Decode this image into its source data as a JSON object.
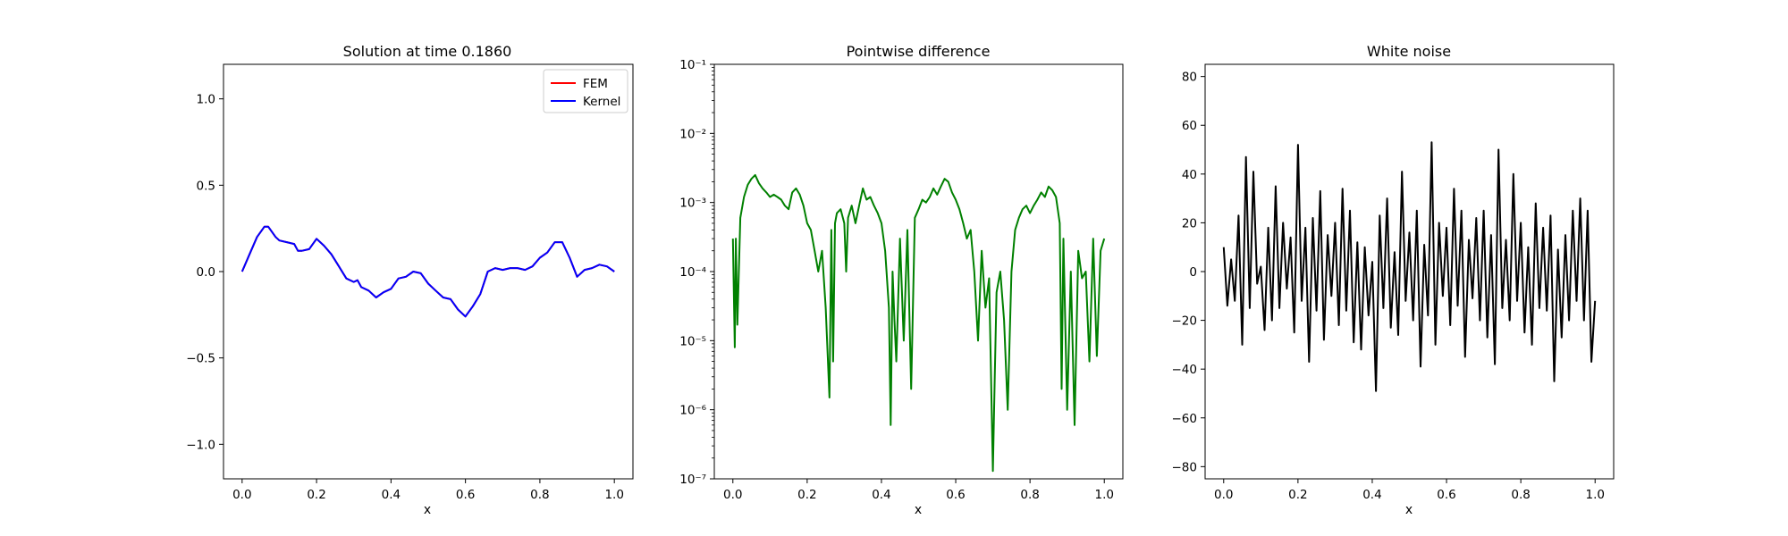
{
  "chart_data": [
    {
      "type": "line",
      "title": "Solution at time 0.1860",
      "xlabel": "x",
      "ylabel": "",
      "xlim": [
        -0.05,
        1.05
      ],
      "ylim": [
        -1.2,
        1.2
      ],
      "xticks": [
        "0.0",
        "0.2",
        "0.4",
        "0.6",
        "0.8",
        "1.0"
      ],
      "yticks": [
        "−1.0",
        "−0.5",
        "0.0",
        "0.5",
        "1.0"
      ],
      "yscale": "linear",
      "grid": false,
      "legend": "top-right",
      "series": [
        {
          "name": "FEM",
          "color": "#ff0000",
          "x": [
            0.0,
            0.02,
            0.04,
            0.06,
            0.07,
            0.09,
            0.1,
            0.12,
            0.14,
            0.15,
            0.16,
            0.18,
            0.2,
            0.22,
            0.24,
            0.26,
            0.28,
            0.3,
            0.31,
            0.32,
            0.34,
            0.36,
            0.38,
            0.4,
            0.42,
            0.44,
            0.46,
            0.48,
            0.5,
            0.52,
            0.54,
            0.56,
            0.58,
            0.6,
            0.62,
            0.64,
            0.66,
            0.68,
            0.7,
            0.72,
            0.74,
            0.76,
            0.78,
            0.8,
            0.82,
            0.84,
            0.86,
            0.88,
            0.9,
            0.92,
            0.94,
            0.96,
            0.98,
            1.0
          ],
          "y": [
            0.0,
            0.1,
            0.2,
            0.26,
            0.26,
            0.2,
            0.18,
            0.17,
            0.16,
            0.12,
            0.12,
            0.13,
            0.19,
            0.15,
            0.1,
            0.03,
            -0.04,
            -0.06,
            -0.05,
            -0.09,
            -0.11,
            -0.15,
            -0.12,
            -0.1,
            -0.04,
            -0.03,
            0.0,
            -0.01,
            -0.07,
            -0.11,
            -0.15,
            -0.16,
            -0.22,
            -0.26,
            -0.2,
            -0.13,
            0.0,
            0.02,
            0.01,
            0.02,
            0.02,
            0.01,
            0.03,
            0.08,
            0.11,
            0.17,
            0.17,
            0.08,
            -0.03,
            0.01,
            0.02,
            0.04,
            0.03,
            0.0
          ]
        },
        {
          "name": "Kernel",
          "color": "#0000ff",
          "x": [
            0.0,
            0.02,
            0.04,
            0.06,
            0.07,
            0.09,
            0.1,
            0.12,
            0.14,
            0.15,
            0.16,
            0.18,
            0.2,
            0.22,
            0.24,
            0.26,
            0.28,
            0.3,
            0.31,
            0.32,
            0.34,
            0.36,
            0.38,
            0.4,
            0.42,
            0.44,
            0.46,
            0.48,
            0.5,
            0.52,
            0.54,
            0.56,
            0.58,
            0.6,
            0.62,
            0.64,
            0.66,
            0.68,
            0.7,
            0.72,
            0.74,
            0.76,
            0.78,
            0.8,
            0.82,
            0.84,
            0.86,
            0.88,
            0.9,
            0.92,
            0.94,
            0.96,
            0.98,
            1.0
          ],
          "y": [
            0.0,
            0.1,
            0.2,
            0.26,
            0.26,
            0.2,
            0.18,
            0.17,
            0.16,
            0.12,
            0.12,
            0.13,
            0.19,
            0.15,
            0.1,
            0.03,
            -0.04,
            -0.06,
            -0.05,
            -0.09,
            -0.11,
            -0.15,
            -0.12,
            -0.1,
            -0.04,
            -0.03,
            0.0,
            -0.01,
            -0.07,
            -0.11,
            -0.15,
            -0.16,
            -0.22,
            -0.26,
            -0.2,
            -0.13,
            0.0,
            0.02,
            0.01,
            0.02,
            0.02,
            0.01,
            0.03,
            0.08,
            0.11,
            0.17,
            0.17,
            0.08,
            -0.03,
            0.01,
            0.02,
            0.04,
            0.03,
            0.0
          ]
        }
      ]
    },
    {
      "type": "line",
      "title": "Pointwise difference",
      "xlabel": "x",
      "ylabel": "",
      "xlim": [
        -0.05,
        1.05
      ],
      "ylim": [
        1e-07,
        0.1
      ],
      "xticks": [
        "0.0",
        "0.2",
        "0.4",
        "0.6",
        "0.8",
        "1.0"
      ],
      "yticks": [
        "10⁻⁷",
        "10⁻⁶",
        "10⁻⁵",
        "10⁻⁴",
        "10⁻³",
        "10⁻²",
        "10⁻¹"
      ],
      "yscale": "log",
      "grid": false,
      "series": [
        {
          "color": "#008000",
          "x": [
            0.0,
            0.005,
            0.008,
            0.012,
            0.02,
            0.03,
            0.04,
            0.05,
            0.06,
            0.07,
            0.08,
            0.09,
            0.1,
            0.11,
            0.12,
            0.13,
            0.14,
            0.15,
            0.16,
            0.17,
            0.18,
            0.19,
            0.2,
            0.21,
            0.22,
            0.23,
            0.24,
            0.25,
            0.26,
            0.265,
            0.27,
            0.275,
            0.28,
            0.29,
            0.3,
            0.305,
            0.31,
            0.32,
            0.33,
            0.34,
            0.35,
            0.36,
            0.37,
            0.38,
            0.39,
            0.4,
            0.41,
            0.42,
            0.425,
            0.43,
            0.435,
            0.44,
            0.45,
            0.46,
            0.47,
            0.48,
            0.49,
            0.5,
            0.51,
            0.52,
            0.53,
            0.54,
            0.55,
            0.56,
            0.57,
            0.58,
            0.59,
            0.6,
            0.61,
            0.62,
            0.63,
            0.64,
            0.65,
            0.66,
            0.67,
            0.68,
            0.69,
            0.7,
            0.705,
            0.71,
            0.72,
            0.73,
            0.74,
            0.75,
            0.76,
            0.77,
            0.78,
            0.79,
            0.8,
            0.81,
            0.82,
            0.83,
            0.84,
            0.85,
            0.86,
            0.87,
            0.88,
            0.885,
            0.89,
            0.9,
            0.91,
            0.92,
            0.93,
            0.94,
            0.95,
            0.96,
            0.97,
            0.98,
            0.99,
            1.0
          ],
          "y": [
            0.0003,
            8e-06,
            0.0003,
            1.7e-05,
            0.0006,
            0.0012,
            0.0018,
            0.0022,
            0.0025,
            0.0019,
            0.0016,
            0.0014,
            0.0012,
            0.0013,
            0.0012,
            0.0011,
            0.0009,
            0.0008,
            0.0014,
            0.0016,
            0.0013,
            0.0009,
            0.0005,
            0.0004,
            0.0002,
            0.0001,
            0.0002,
            3e-05,
            1.5e-06,
            0.0004,
            5e-06,
            0.0005,
            0.0007,
            0.0008,
            0.0005,
            0.0001,
            0.0006,
            0.0009,
            0.0005,
            0.0009,
            0.0016,
            0.0011,
            0.0012,
            0.0009,
            0.0007,
            0.0005,
            0.0002,
            3e-05,
            6e-07,
            0.0001,
            2e-05,
            5e-06,
            0.0003,
            1e-05,
            0.0004,
            2e-06,
            0.0006,
            0.0008,
            0.0011,
            0.001,
            0.0012,
            0.0016,
            0.0013,
            0.0017,
            0.0022,
            0.002,
            0.0014,
            0.0011,
            0.0008,
            0.0005,
            0.0003,
            0.0004,
            0.0001,
            1e-05,
            0.0002,
            3e-05,
            8e-05,
            1.3e-07,
            3e-06,
            5e-05,
            0.0001,
            2e-05,
            1e-06,
            0.0001,
            0.0004,
            0.0006,
            0.0008,
            0.0009,
            0.0007,
            0.0009,
            0.0011,
            0.0014,
            0.0012,
            0.0017,
            0.0015,
            0.0012,
            0.0005,
            2e-06,
            0.0003,
            1e-06,
            0.0001,
            6e-07,
            0.0002,
            8e-05,
            0.0001,
            5e-06,
            0.0003,
            6e-06,
            0.0002,
            0.0003
          ]
        }
      ]
    },
    {
      "type": "line",
      "title": "White noise",
      "xlabel": "x",
      "ylabel": "",
      "xlim": [
        -0.05,
        1.05
      ],
      "ylim": [
        -85,
        85
      ],
      "xticks": [
        "0.0",
        "0.2",
        "0.4",
        "0.6",
        "0.8",
        "1.0"
      ],
      "yticks": [
        "−80",
        "−60",
        "−40",
        "−20",
        "0",
        "20",
        "40",
        "60",
        "80"
      ],
      "yscale": "linear",
      "grid": false,
      "series": [
        {
          "color": "#000000",
          "x": [
            0.0,
            0.01,
            0.02,
            0.03,
            0.04,
            0.05,
            0.06,
            0.07,
            0.08,
            0.09,
            0.1,
            0.11,
            0.12,
            0.13,
            0.14,
            0.15,
            0.16,
            0.17,
            0.18,
            0.19,
            0.2,
            0.21,
            0.22,
            0.23,
            0.24,
            0.25,
            0.26,
            0.27,
            0.28,
            0.29,
            0.3,
            0.31,
            0.32,
            0.33,
            0.34,
            0.35,
            0.36,
            0.37,
            0.38,
            0.39,
            0.4,
            0.41,
            0.42,
            0.43,
            0.44,
            0.45,
            0.46,
            0.47,
            0.48,
            0.49,
            0.5,
            0.51,
            0.52,
            0.53,
            0.54,
            0.55,
            0.56,
            0.57,
            0.58,
            0.59,
            0.6,
            0.61,
            0.62,
            0.63,
            0.64,
            0.65,
            0.66,
            0.67,
            0.68,
            0.69,
            0.7,
            0.71,
            0.72,
            0.73,
            0.74,
            0.75,
            0.76,
            0.77,
            0.78,
            0.79,
            0.8,
            0.81,
            0.82,
            0.83,
            0.84,
            0.85,
            0.86,
            0.87,
            0.88,
            0.89,
            0.9,
            0.91,
            0.92,
            0.93,
            0.94,
            0.95,
            0.96,
            0.97,
            0.98,
            0.99,
            1.0
          ],
          "y": [
            10,
            -14,
            5,
            -12,
            23,
            -30,
            47,
            -15,
            41,
            -5,
            2,
            -24,
            18,
            -20,
            35,
            -15,
            20,
            -7,
            14,
            -25,
            52,
            -12,
            18,
            -37,
            22,
            -16,
            33,
            -28,
            15,
            -10,
            20,
            -22,
            34,
            -16,
            25,
            -29,
            12,
            -32,
            10,
            -18,
            4,
            -49,
            23,
            -15,
            30,
            -23,
            8,
            -26,
            41,
            -12,
            16,
            -20,
            25,
            -39,
            11,
            -18,
            53,
            -30,
            20,
            -10,
            18,
            -22,
            34,
            -14,
            25,
            -35,
            13,
            -11,
            22,
            -20,
            25,
            -27,
            15,
            -38,
            50,
            -15,
            13,
            -20,
            40,
            -12,
            20,
            -25,
            10,
            -30,
            28,
            -15,
            18,
            -16,
            23,
            -45,
            9,
            -27,
            15,
            -20,
            25,
            -12,
            30,
            -20,
            25,
            -37,
            -12
          ]
        }
      ]
    }
  ]
}
